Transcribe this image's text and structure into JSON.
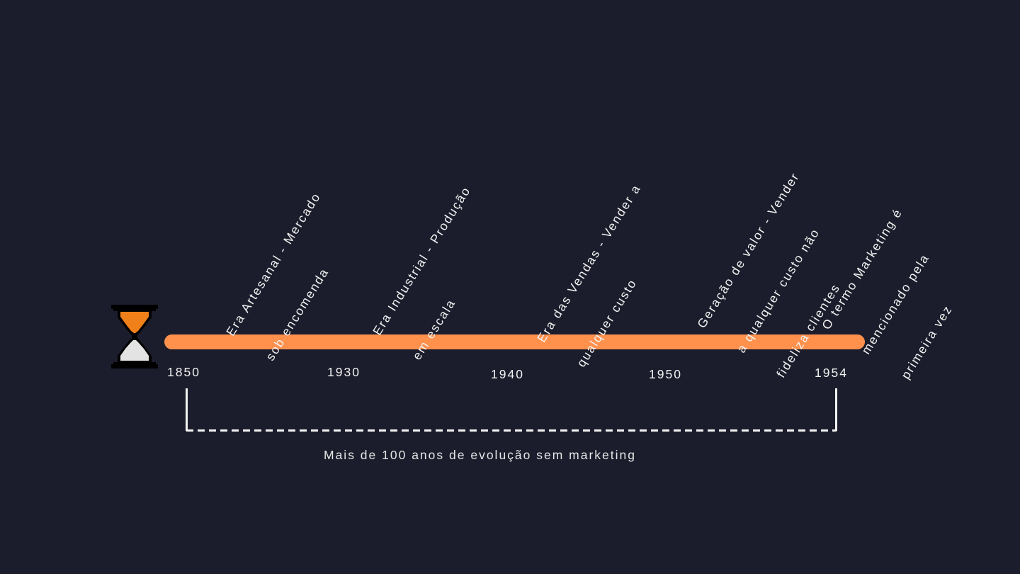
{
  "colors": {
    "background": "#1c1d2c",
    "timeline": "#ff914d",
    "text": "#f2f2f2",
    "sand": "#f0801a",
    "glass": "#e3e3e3",
    "frame": "#000000"
  },
  "icon": {
    "name": "hourglass-icon"
  },
  "timeline": {
    "events": [
      {
        "lines": [
          "Era Artesanal - Mercado",
          "sob encomenda"
        ]
      },
      {
        "lines": [
          "Era Industrial - Produção",
          "em escala"
        ]
      },
      {
        "lines": [
          "Era das Vendas - Vender a",
          "qualquer custo"
        ]
      },
      {
        "lines": [
          "Geração de valor - Vender",
          "a qualquer custo não",
          "fideliza clientes"
        ]
      },
      {
        "lines": [
          "O termo Marketing é",
          "mencionado pela",
          "primeira vez"
        ]
      }
    ],
    "years": [
      "1850",
      "1930",
      "1940",
      "1950",
      "1954"
    ]
  },
  "span": {
    "caption": "Mais de 100 anos de evolução sem marketing"
  }
}
